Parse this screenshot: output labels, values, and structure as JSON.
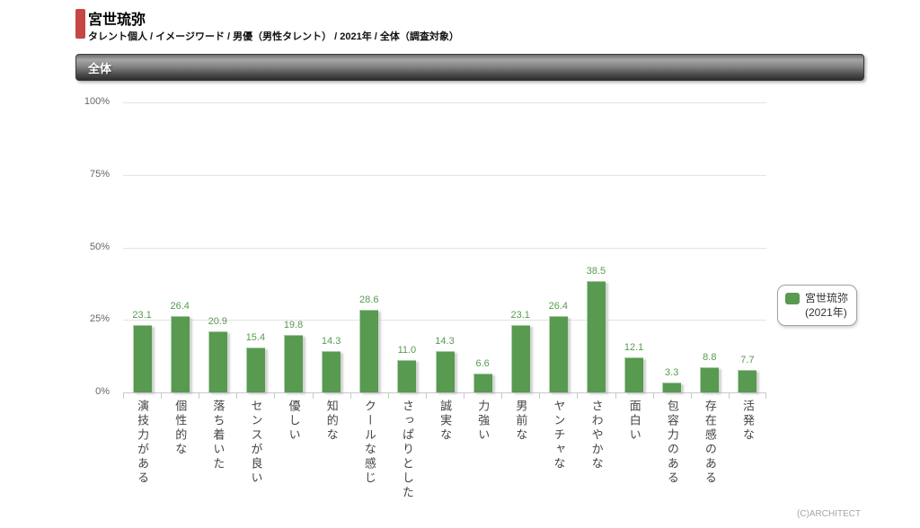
{
  "header": {
    "title": "宮世琉弥",
    "breadcrumb": "タレント個人 / イメージワード / 男優（男性タレント） / 2021年 / 全体（調査対象）",
    "accent_color": "#c64545"
  },
  "section": {
    "label": "全体"
  },
  "legend": {
    "name": "宮世琉弥",
    "year": "(2021年)",
    "swatch_color": "#579a50"
  },
  "footer": {
    "copyright": "(C)ARCHITECT"
  },
  "chart_data": {
    "type": "bar",
    "title": "全体",
    "categories": [
      "演技力がある",
      "個性的な",
      "落ち着いた",
      "センスが良い",
      "優しい",
      "知的な",
      "クールな感じ",
      "さっぱりとした",
      "誠実な",
      "力強い",
      "男前な",
      "ヤンチャな",
      "さわやかな",
      "面白い",
      "包容力のある",
      "存在感のある",
      "活発な"
    ],
    "series": [
      {
        "name": "宮世琉弥 (2021年)",
        "values": [
          23.1,
          26.4,
          20.9,
          15.4,
          19.8,
          14.3,
          28.6,
          11.0,
          14.3,
          6.6,
          23.1,
          26.4,
          38.5,
          12.1,
          3.3,
          8.8,
          7.7
        ]
      }
    ],
    "xlabel": "",
    "ylabel": "",
    "ylim": [
      0,
      100
    ],
    "yticks": [
      0,
      25,
      50,
      75,
      100
    ],
    "ytick_labels": [
      "0%",
      "25%",
      "50%",
      "75%",
      "100%"
    ],
    "grid": true,
    "legend_position": "right",
    "bar_color": "#579a50",
    "value_label_color": "#579a50"
  }
}
